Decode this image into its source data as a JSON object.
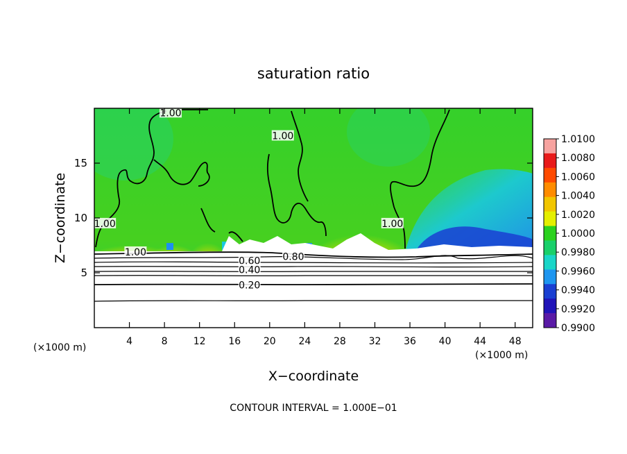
{
  "chart_data": {
    "type": "contour",
    "title": "saturation ratio",
    "xlabel": "X−coordinate",
    "ylabel": "Z−coordinate",
    "x_unit_left": "(×1000 m)",
    "x_unit_right": "(×1000 m)",
    "xlim": [
      0,
      50
    ],
    "ylim": [
      0,
      20
    ],
    "x_ticks": [
      4,
      8,
      12,
      16,
      20,
      24,
      28,
      32,
      36,
      40,
      44,
      48
    ],
    "y_ticks": [
      5,
      10,
      15
    ],
    "colorbar": {
      "ticks": [
        "1.0100",
        "1.0080",
        "1.0060",
        "1.0040",
        "1.0020",
        "1.0000",
        "0.9980",
        "0.9960",
        "0.9940",
        "0.9920",
        "0.9900"
      ],
      "colors": [
        "#f7a3a0",
        "#e81a1a",
        "#ff4a00",
        "#ff8c00",
        "#f2c600",
        "#e5ef00",
        "#2bd21e",
        "#19d06a",
        "#19d6c8",
        "#1e96f0",
        "#1a3fd2",
        "#2014b8",
        "#5a1aa6"
      ]
    },
    "contour_labels": [
      {
        "text": "1.00",
        "x": 8.7,
        "z": 19.6
      },
      {
        "text": "1.00",
        "x": 21.5,
        "z": 17.5
      },
      {
        "text": "1.00",
        "x": 1.2,
        "z": 9.5
      },
      {
        "text": "1.00",
        "x": 34.0,
        "z": 9.5
      },
      {
        "text": "1.00",
        "x": 4.7,
        "z": 6.9
      },
      {
        "text": "0.80",
        "x": 22.7,
        "z": 6.5
      },
      {
        "text": "0.60",
        "x": 17.7,
        "z": 6.1
      },
      {
        "text": "0.40",
        "x": 17.7,
        "z": 5.3
      },
      {
        "text": "0.20",
        "x": 17.7,
        "z": 3.9
      }
    ],
    "stable_layer_contours_z": [
      7.0,
      6.6,
      6.2,
      5.8,
      5.5,
      5.0,
      4.1,
      2.4
    ],
    "contour_interval_text": "CONTOUR INTERVAL = 1.000E−01"
  }
}
